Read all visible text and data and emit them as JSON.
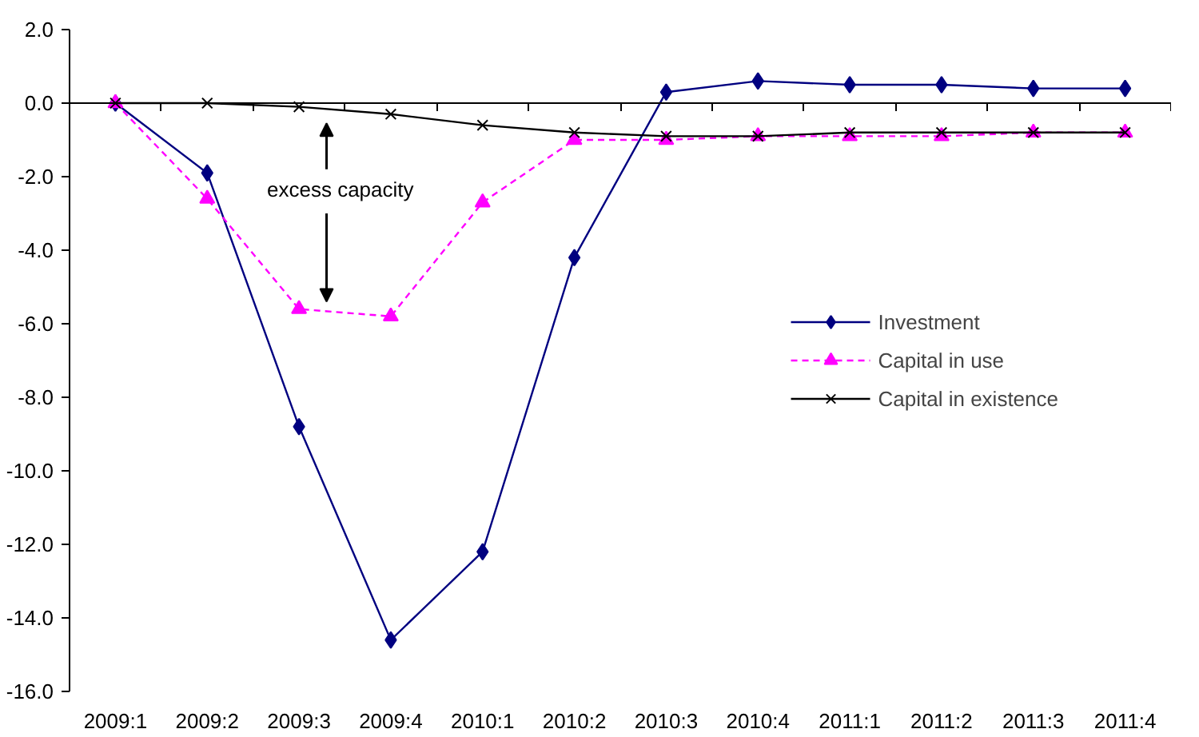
{
  "chart_data": {
    "type": "line",
    "categories": [
      "2009:1",
      "2009:2",
      "2009:3",
      "2009:4",
      "2010:1",
      "2010:2",
      "2010:3",
      "2010:4",
      "2011:1",
      "2011:2",
      "2011:3",
      "2011:4"
    ],
    "series": [
      {
        "name": "Investment",
        "color": "#000080",
        "marker": "diamond",
        "line_style": "solid",
        "values": [
          0.0,
          -1.9,
          -8.8,
          -14.6,
          -12.2,
          -4.2,
          0.3,
          0.6,
          0.5,
          0.5,
          0.4,
          0.4
        ]
      },
      {
        "name": "Capital in use",
        "color": "#ff00ff",
        "marker": "triangle",
        "line_style": "dashed",
        "values": [
          0.0,
          -2.6,
          -5.6,
          -5.8,
          -2.7,
          -1.0,
          -1.0,
          -0.9,
          -0.9,
          -0.9,
          -0.8,
          -0.8
        ]
      },
      {
        "name": "Capital in existence",
        "color": "#000000",
        "marker": "cross",
        "line_style": "solid",
        "values": [
          0.0,
          0.0,
          -0.1,
          -0.3,
          -0.6,
          -0.8,
          -0.9,
          -0.9,
          -0.8,
          -0.8,
          -0.8,
          -0.8
        ]
      }
    ],
    "ylim": [
      -16.0,
      2.0
    ],
    "yticks": [
      {
        "value": 2,
        "label": "2.0"
      },
      {
        "value": 0,
        "label": "0.0"
      },
      {
        "value": -2,
        "label": "-2.0"
      },
      {
        "value": -4,
        "label": "-4.0"
      },
      {
        "value": -6,
        "label": "-6.0"
      },
      {
        "value": -8,
        "label": "-8.0"
      },
      {
        "value": -10,
        "label": "-10.0"
      },
      {
        "value": -12,
        "label": "-12.0"
      },
      {
        "value": -14,
        "label": "-14.0"
      },
      {
        "value": -16,
        "label": "-16.0"
      }
    ],
    "annotations": [
      "excess capacity"
    ],
    "legend": "right"
  }
}
